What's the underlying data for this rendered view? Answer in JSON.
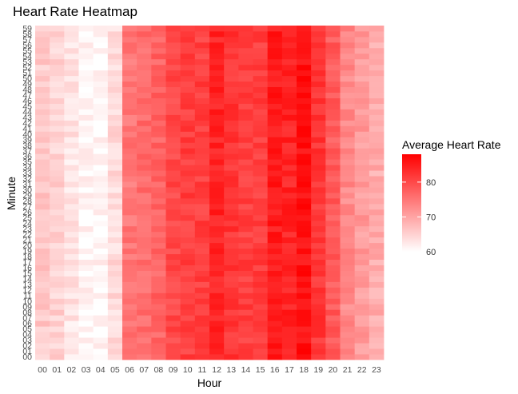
{
  "chart_data": {
    "type": "heatmap",
    "title": "Heart Rate Heatmap",
    "xlabel": "Hour",
    "ylabel": "Minute",
    "x_categories": [
      "00",
      "01",
      "02",
      "03",
      "04",
      "05",
      "06",
      "07",
      "08",
      "09",
      "10",
      "11",
      "12",
      "13",
      "14",
      "15",
      "16",
      "17",
      "18",
      "19",
      "20",
      "21",
      "22",
      "23"
    ],
    "y_categories": [
      "00",
      "01",
      "02",
      "03",
      "04",
      "05",
      "06",
      "07",
      "08",
      "09",
      "10",
      "11",
      "12",
      "13",
      "14",
      "15",
      "16",
      "17",
      "18",
      "19",
      "20",
      "21",
      "22",
      "23",
      "24",
      "25",
      "26",
      "27",
      "28",
      "29",
      "30",
      "31",
      "32",
      "33",
      "34",
      "35",
      "36",
      "37",
      "38",
      "39",
      "40",
      "41",
      "42",
      "43",
      "44",
      "45",
      "46",
      "47",
      "48",
      "49",
      "50",
      "51",
      "52",
      "53",
      "54",
      "55",
      "56",
      "57",
      "58",
      "59"
    ],
    "hour_mean_values": [
      66,
      65,
      63,
      61,
      61,
      64,
      75,
      76,
      77,
      80,
      81,
      81,
      84,
      82,
      81,
      81,
      85,
      84,
      86,
      82,
      78,
      73,
      71,
      69
    ],
    "legend": {
      "title": "Average Heart Rate",
      "ticks": [
        60,
        70,
        80
      ],
      "range": [
        60,
        88
      ],
      "low_color": "#ffffff",
      "high_color": "#ff0000",
      "position": "right"
    },
    "grid": false
  }
}
